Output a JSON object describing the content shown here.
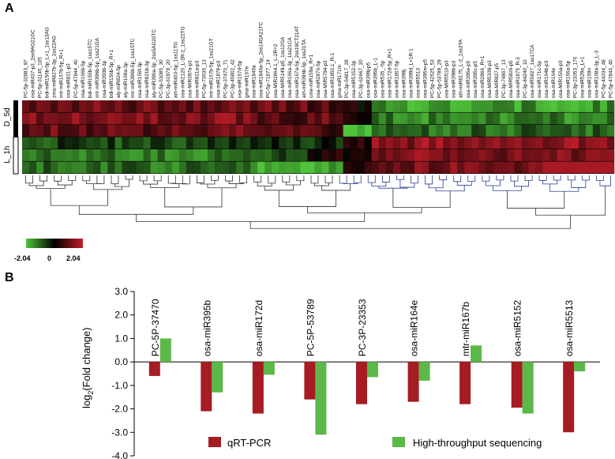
{
  "panel_a": {
    "label": "A",
    "row_labels": [
      "D_5d",
      "L_1h"
    ],
    "colorbar": {
      "min_label": "-2.04",
      "mid_label": "0",
      "max_label": "2.04",
      "low_color": "#4fc43a",
      "mid_color": "#000000",
      "high_color": "#c41e2a"
    },
    "column_labels": [
      "PC-5p-32883_97",
      "osa-miR437-p3_2ss9AG21GC",
      "PC-5p-31145_105",
      "bdi-miR156b-5p_L+1_1ss13AG",
      "zma-miR827b-3p_1ss22AG",
      "mtr-miR167b-5p_R+1",
      "osa-miR821-p3",
      "PC-5p-47844_40",
      "osa-miR166b-5p",
      "bdi-miR156b-5p_1ss15TC",
      "mtr-miR396b-5p_1ss21GA",
      "osa-miR393b-3p",
      "bdi-miR156b-5p_R+1",
      "aly-miR824-5p",
      "aly-miR168a-3p",
      "mtr-miR396b-5p_1ss15TC",
      "osa-miR156f-3p",
      "osa-miR821b-3p",
      "aly-miR390a-3p_2ss5AG20TC",
      "PC-5p-53085_30",
      "PC-3p-61979_20",
      "ath-miR403-5p_1ss11TG",
      "osa-miR2120_L-2R-2_1ss22TG",
      "osa-MIR397a-p3",
      "osa-miR821a-p3",
      "PC-5p-73636_13",
      "mtr-miR167b-5p_1ss21GT",
      "osa-miR1878-p3",
      "PC-5p-37470_71",
      "PC-3p-46802_42",
      "osa-miR167d-5p",
      "gma-miR167e",
      "osa-miR1846a",
      "osa-miR1846a-5p_2ss14GA21TC",
      "PC-5p-71877_14",
      "osa-MIR2864.1_L-2R+2",
      "osa-MIR5149-p5_1ss12GA",
      "osa-miR166a-3p_1ss21CA",
      "osa-miR167a-5p_2ss19CT21AT",
      "ath-miR396b-5p_1ss21TA",
      "cme-miR159a_R+1",
      "osa-miR2876-5p",
      "osa-MIR5794-p3",
      "osa-miR1850.1_R-1",
      "gma-miR171m",
      "PC-3p-54817_28",
      "osa-miR5152-3p",
      "PC-3p-62667_20",
      "osa-miR399j-p5",
      "osa-miR395b_L-1",
      "osa-miR535_-5p",
      "osa-miR172d-5p_R+1",
      "osa-miR1867-5p",
      "osa-miR399j",
      "osa-miR399d_L+1R-1",
      "osa-miR5513",
      "osa-miR395m-p5",
      "PC-5p-42625_53",
      "PC-5p-53789_29",
      "osa-MIR5510-p3",
      "osa-miR398b-p3",
      "ath-miR8175_L-2_1ss3TA",
      "osa-miR395e-p5",
      "osa-miR395c-p5",
      "osa-miR2866_R+1",
      "osa-MIR5339-p3",
      "osa-MIR827-p5",
      "PC-3p-74807_13",
      "osa-MIR5826-p5",
      "osa-miR1875_R-3",
      "PC-3p-84240_10",
      "osa-miR5827_1ss17CA",
      "osa-miR171c-5p",
      "osa-miR164b-p3",
      "osa-miR164e",
      "osa-MIR156a-p3",
      "osa-miR166a-5p",
      "PC-3p-23353_176",
      "osa-miR529a_L+1",
      "osa-miR169n",
      "osa-miR168a-3p_L-3",
      "PC-5p-44334_48",
      "PC-5p-47844_40"
    ]
  },
  "panel_b": {
    "label": "B",
    "legend": {
      "qrt_label": "qRT-PCR",
      "hts_label": "High-throughput sequencing",
      "qrt_color": "#a61c22",
      "hts_color": "#5cb848"
    }
  },
  "chart_data": {
    "type": "bar",
    "categories": [
      "PC-5P-37470",
      "osa-miR395b",
      "osa-miR172d",
      "PC-5P-53789",
      "PC-3P-23353",
      "osa-miR164e",
      "mtr-miR167b",
      "osa-miR5152",
      "osa-miR5513"
    ],
    "series": [
      {
        "name": "qRT-PCR",
        "values": [
          -0.6,
          -2.1,
          -2.2,
          -1.6,
          -1.8,
          -1.7,
          -1.8,
          -1.95,
          -3.0
        ]
      },
      {
        "name": "High-throughput sequencing",
        "values": [
          1.0,
          -1.3,
          -0.55,
          -3.1,
          -0.65,
          -0.8,
          0.7,
          -2.2,
          -0.4
        ]
      }
    ],
    "ylabel": "log2(Fold change)",
    "ylabel_base": "log",
    "ylabel_sub": "2",
    "ylabel_rest": "(Fold change)",
    "ylim": [
      -4.0,
      3.0
    ],
    "yticks": [
      "3.0",
      "2.0",
      "1.0",
      "0.0",
      "-1.0",
      "-2.0",
      "-3.0",
      "-4.0"
    ],
    "yticks_values": [
      3,
      2,
      1,
      0,
      -1,
      -2,
      -3,
      -4
    ],
    "legend_position": "bottom",
    "grid": false
  }
}
